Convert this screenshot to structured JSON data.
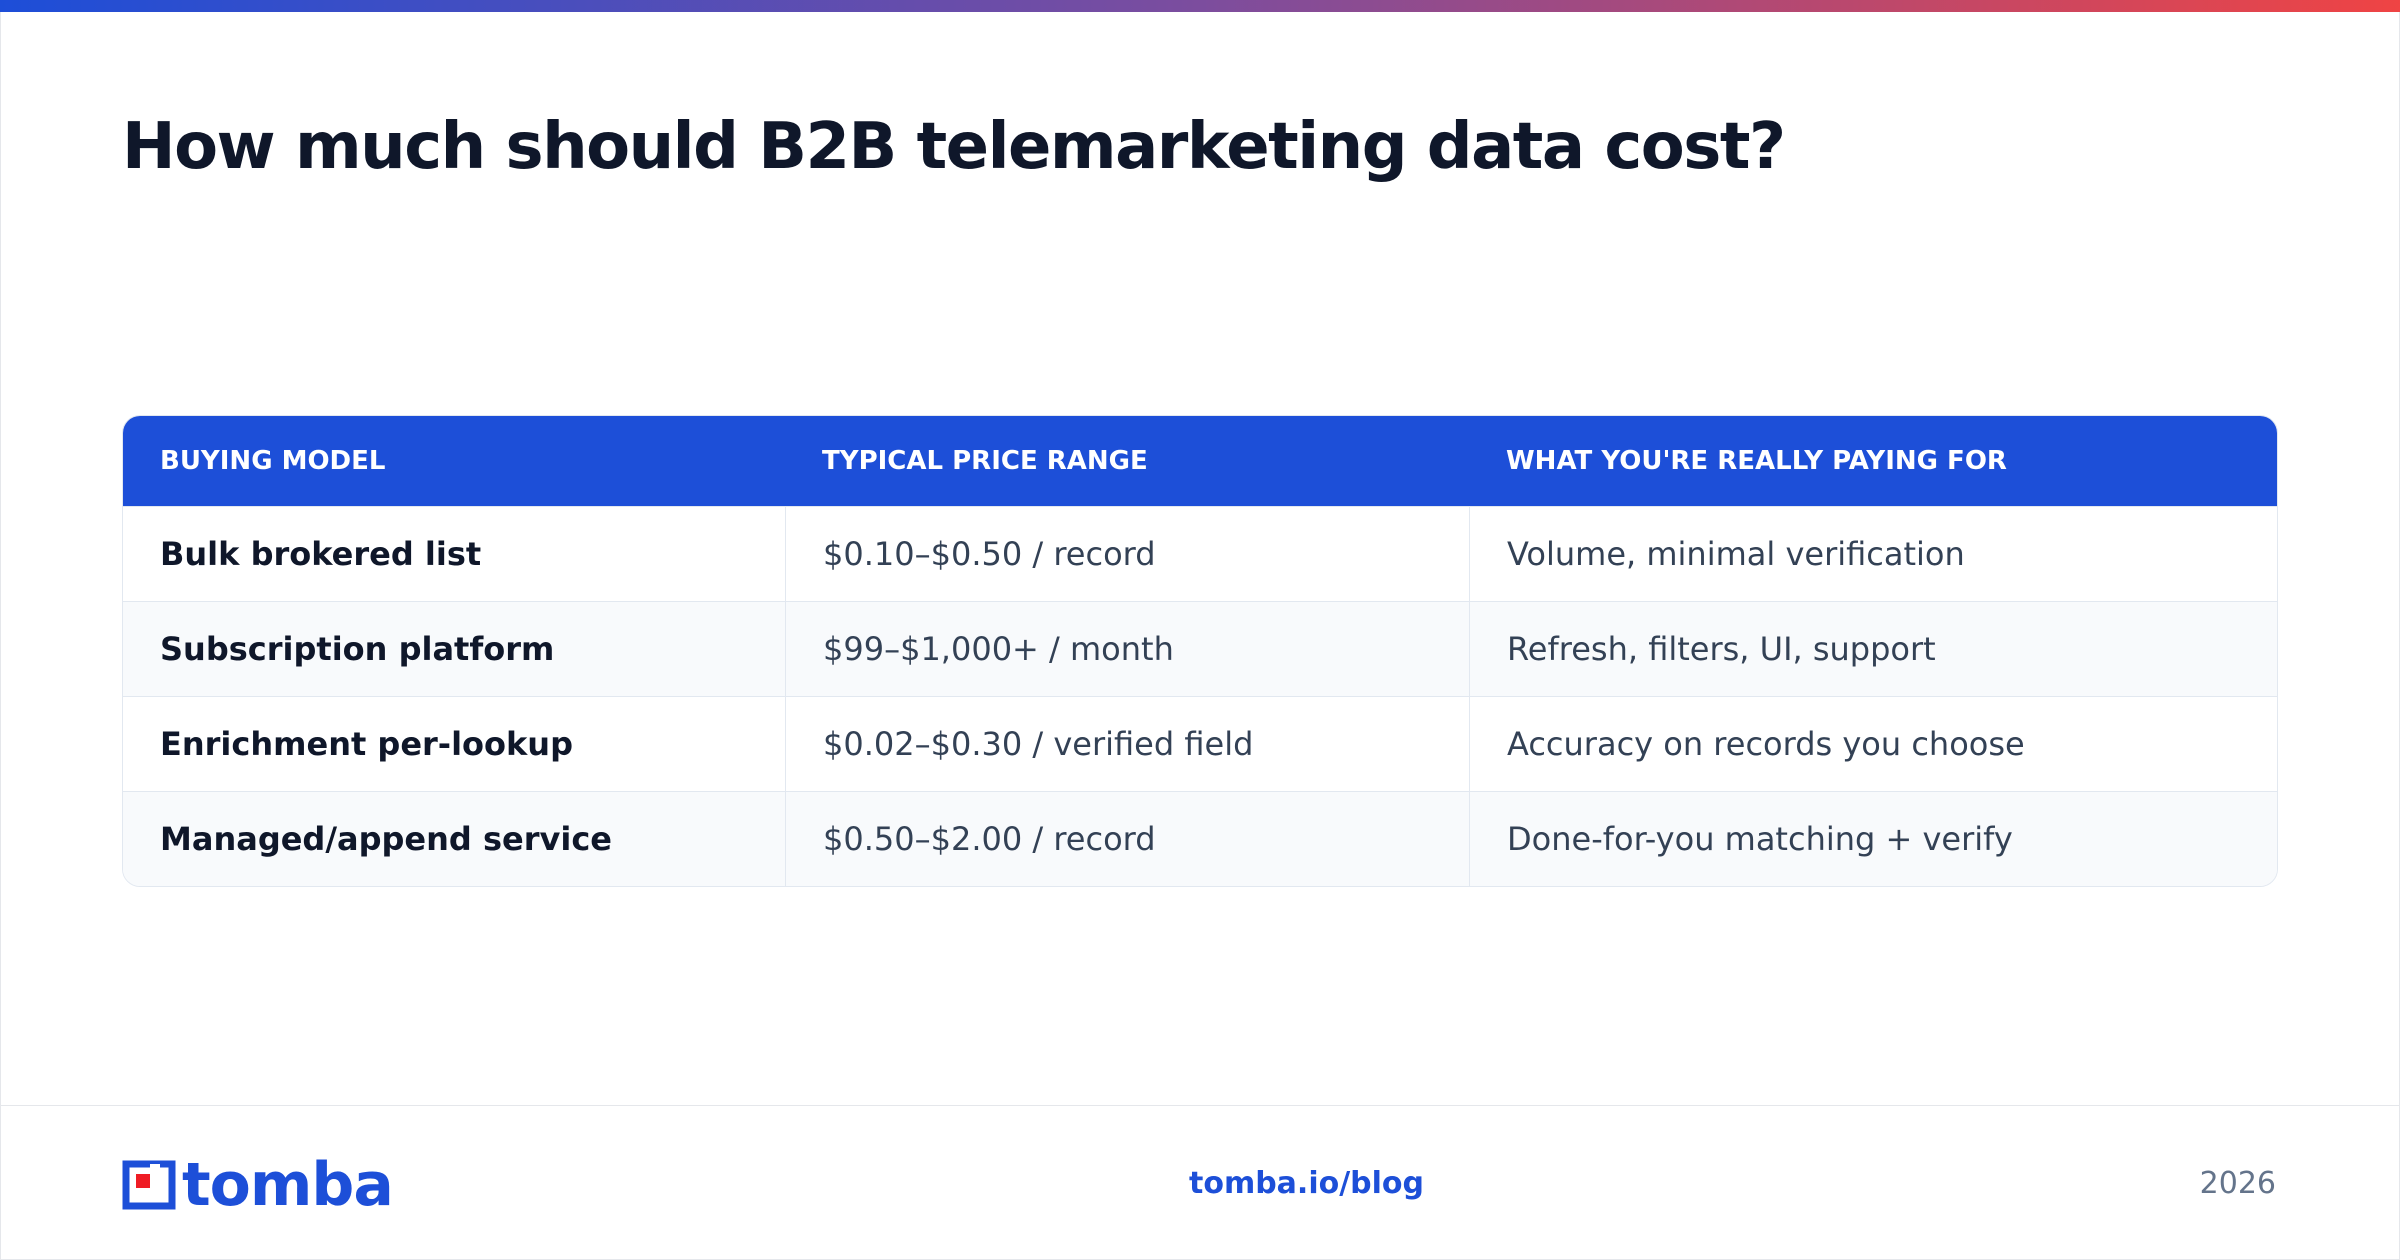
{
  "header": {
    "title": "How much should B2B telemarketing data cost?"
  },
  "table": {
    "headers": [
      "BUYING MODEL",
      "TYPICAL PRICE RANGE",
      "WHAT YOU'RE REALLY PAYING FOR"
    ],
    "rows": [
      [
        "Bulk brokered list",
        "$0.10–$0.50 / record",
        "Volume, minimal verification"
      ],
      [
        "Subscription platform",
        "$99–$1,000+ / month",
        "Refresh, filters, UI, support"
      ],
      [
        "Enrichment per-lookup",
        "$0.02–$0.30 / verified field",
        "Accuracy on records you choose"
      ],
      [
        "Managed/append service",
        "$0.50–$2.00 / record",
        "Done-for-you matching + verify"
      ]
    ]
  },
  "footer": {
    "logo": "tomba",
    "url": "tomba.io/blog",
    "year": "2026"
  }
}
